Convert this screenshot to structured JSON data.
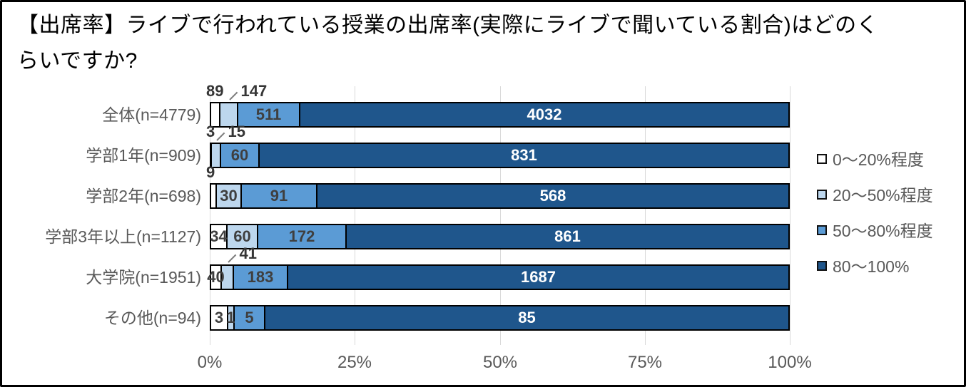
{
  "title": "【出席率】ライブで行われている授業の出席率(実際にライブで聞いている割合)はどのく\nらいですか?",
  "chart_data": {
    "type": "bar",
    "stacked": true,
    "orientation": "horizontal",
    "title": "【出席率】ライブで行われている授業の出席率(実際にライブで聞いている割合)はどのくらいですか?",
    "categories": [
      "全体(n=4779)",
      "学部1年(n=909)",
      "学部2年(n=698)",
      "学部3年以上(n=1127)",
      "大学院(n=1951)",
      "その他(n=94)"
    ],
    "totals": [
      4779,
      909,
      698,
      1127,
      1951,
      94
    ],
    "series": [
      {
        "name": "0〜20%程度",
        "color": "#ffffff",
        "values": [
          89,
          3,
          9,
          34,
          40,
          3
        ]
      },
      {
        "name": "20〜50%程度",
        "color": "#bdd7ee",
        "values": [
          147,
          15,
          30,
          60,
          41,
          1
        ]
      },
      {
        "name": "50〜80%程度",
        "color": "#5b9bd5",
        "values": [
          511,
          60,
          91,
          172,
          183,
          5
        ]
      },
      {
        "name": "80〜100%",
        "color": "#1f568c",
        "values": [
          4032,
          831,
          568,
          861,
          1687,
          85
        ]
      }
    ],
    "x_axis": {
      "min": 0,
      "max": 1,
      "ticks": [
        "0%",
        "25%",
        "50%",
        "75%",
        "100%"
      ]
    },
    "grid": true,
    "legend_position": "right",
    "label_placements": [
      [
        "above",
        "above-leader",
        "inside",
        "inside"
      ],
      [
        "above",
        "above-leader",
        "inside",
        "inside"
      ],
      [
        "above",
        "inside",
        "inside",
        "inside"
      ],
      [
        "inside",
        "inside",
        "inside",
        "inside"
      ],
      [
        "inside",
        "above-leader",
        "inside",
        "inside"
      ],
      [
        "inside",
        "inside",
        "inside",
        "inside"
      ]
    ],
    "colors": {
      "grid": "#d9d9d9",
      "segment_border": "#000000",
      "axis_text": "#595959",
      "data_label": "#3f3f3f",
      "data_label_on_dark": "#ffffff"
    }
  }
}
